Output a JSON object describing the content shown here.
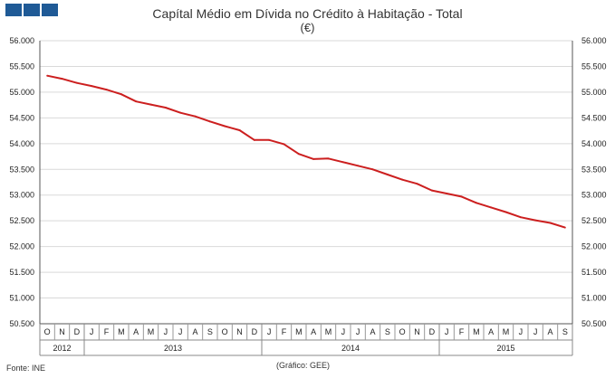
{
  "header": {
    "title": "Capítal Médio em Dívida no Crédito à Habitação - Total",
    "subtitle": "(€)"
  },
  "logo": {
    "colors": [
      "#1f5a96",
      "#1f5a96",
      "#1f5a96"
    ]
  },
  "footer": {
    "source": "Fonte: INE",
    "credit": "(Gráfico: GEE)"
  },
  "chart_data": {
    "type": "line",
    "title": "Capítal Médio em Dívida no Crédito à Habitação - Total",
    "subtitle": "(€)",
    "line_color": "#cc1f1f",
    "grid": true,
    "ylim": [
      50500,
      56000
    ],
    "y_ticks": [
      "50.500",
      "51.000",
      "51.500",
      "52.000",
      "52.500",
      "53.000",
      "53.500",
      "54.000",
      "54.500",
      "55.000",
      "55.500",
      "56.000"
    ],
    "x": [
      "O",
      "N",
      "D",
      "J",
      "F",
      "M",
      "A",
      "M",
      "J",
      "J",
      "A",
      "S",
      "O",
      "N",
      "D",
      "J",
      "F",
      "M",
      "A",
      "M",
      "J",
      "J",
      "A",
      "S",
      "O",
      "N",
      "D",
      "J",
      "F",
      "M",
      "A",
      "M",
      "J",
      "J",
      "A",
      "S"
    ],
    "years": [
      {
        "label": "2012",
        "start": 0,
        "end": 3
      },
      {
        "label": "2013",
        "start": 3,
        "end": 15
      },
      {
        "label": "2014",
        "start": 15,
        "end": 27
      },
      {
        "label": "2015",
        "start": 27,
        "end": 36
      }
    ],
    "values": [
      55320,
      55260,
      55180,
      55120,
      55050,
      54960,
      54820,
      54760,
      54700,
      54600,
      54530,
      54430,
      54340,
      54260,
      54070,
      54070,
      53990,
      53800,
      53700,
      53710,
      53640,
      53570,
      53500,
      53400,
      53300,
      53220,
      53090,
      53030,
      52970,
      52850,
      52760,
      52670,
      52570,
      52510,
      52460,
      52370
    ]
  }
}
